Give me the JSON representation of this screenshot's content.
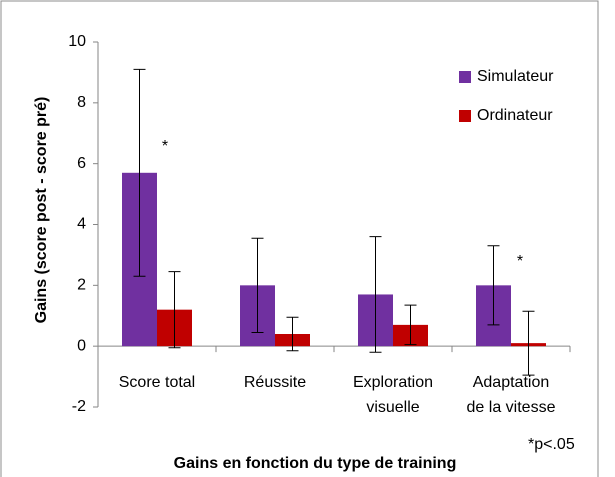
{
  "chart_data": {
    "type": "bar",
    "categories": [
      [
        "Score total"
      ],
      [
        "Réussite"
      ],
      [
        "Exploration",
        "visuelle"
      ],
      [
        "Adaptation",
        "de la vitesse"
      ]
    ],
    "series": [
      {
        "name": "Simulateur",
        "color": "#7030a0",
        "values": [
          5.7,
          2.0,
          1.7,
          2.0
        ],
        "errors": [
          3.4,
          1.55,
          1.9,
          1.3
        ]
      },
      {
        "name": "Ordinateur",
        "color": "#c00000",
        "values": [
          1.2,
          0.4,
          0.7,
          0.1
        ],
        "errors": [
          1.25,
          0.55,
          0.65,
          1.05
        ]
      }
    ],
    "ylabel": "Gains (score post - score pré)",
    "xlabel": "Gains en fonction du type de training",
    "annotations": [
      "*",
      "*",
      "*p<.05"
    ],
    "ylim": [
      -2,
      10
    ],
    "yticks": [
      -2,
      0,
      2,
      4,
      6,
      8,
      10
    ],
    "legend": "upper right"
  }
}
